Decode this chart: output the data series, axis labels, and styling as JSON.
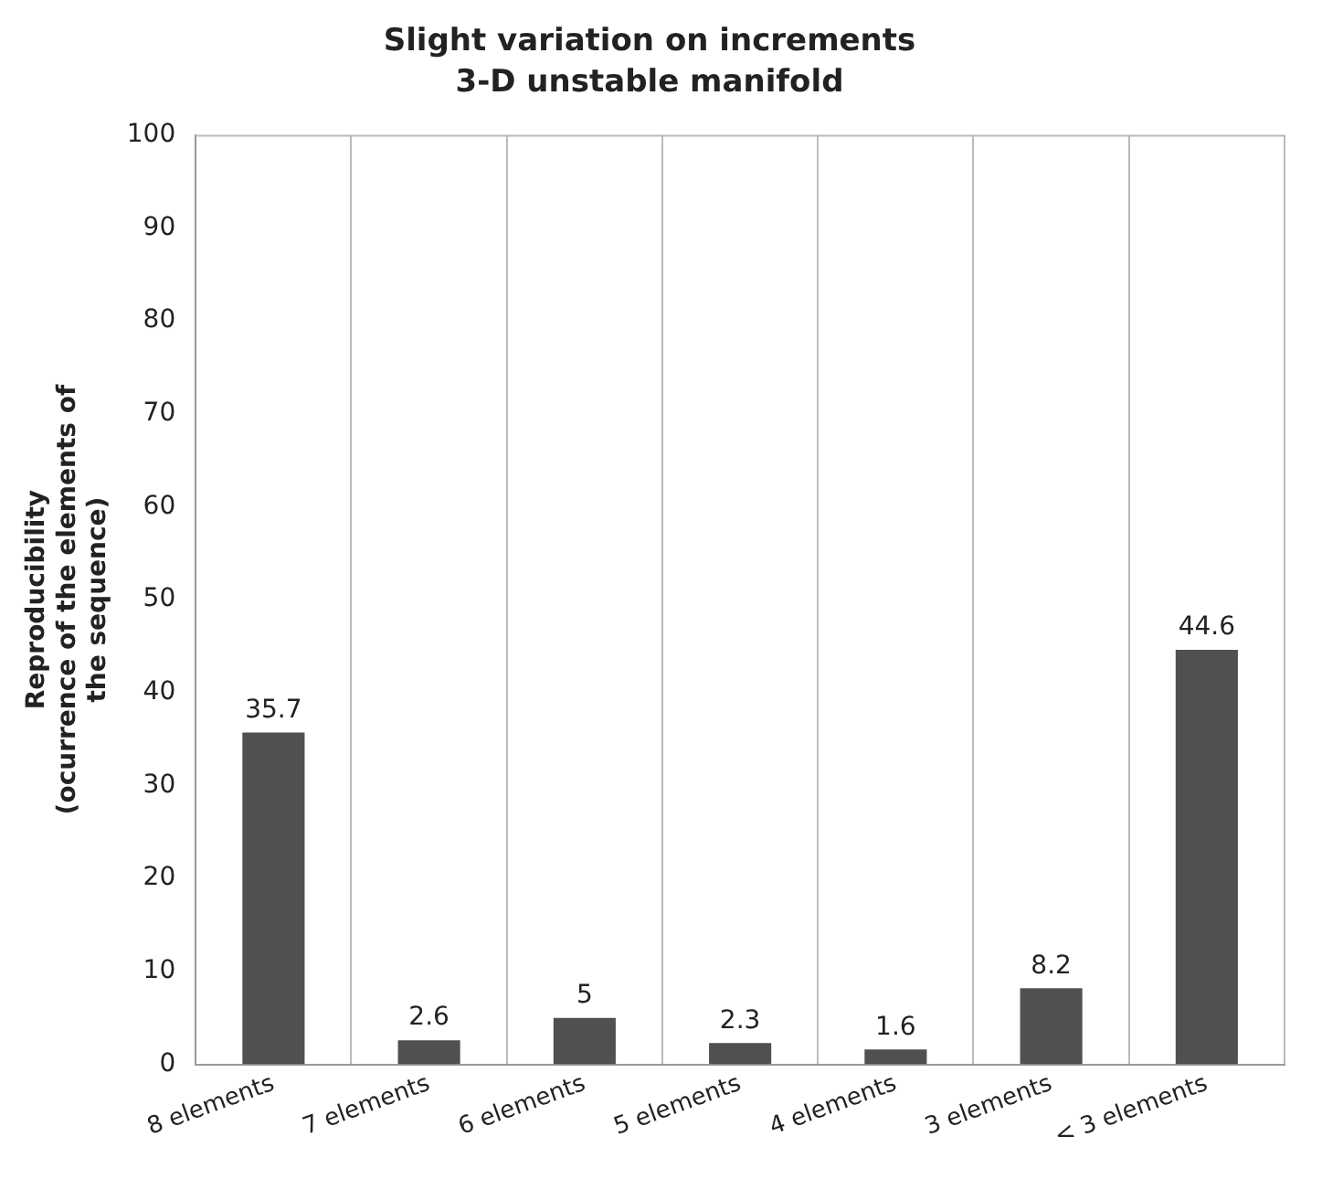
{
  "chart_data": {
    "type": "bar",
    "title": "Slight variation on increments",
    "subtitle": "3-D unstable manifold",
    "ylabel": "Reproducibility\n(ocurrence of the elements of\nthe sequence)",
    "categories": [
      "8 elements",
      "7 elements",
      "6 elements",
      "5 elements",
      "4 elements",
      "3 elements",
      "< 3 elements"
    ],
    "values": [
      35.7,
      2.6,
      5,
      2.3,
      1.6,
      8.2,
      44.6
    ],
    "color": "#505050",
    "ylim": [
      0,
      100
    ],
    "yticks": [
      0,
      10,
      20,
      30,
      40,
      50,
      60,
      70,
      80,
      90,
      100
    ],
    "grid": "x",
    "data_labels": true
  }
}
